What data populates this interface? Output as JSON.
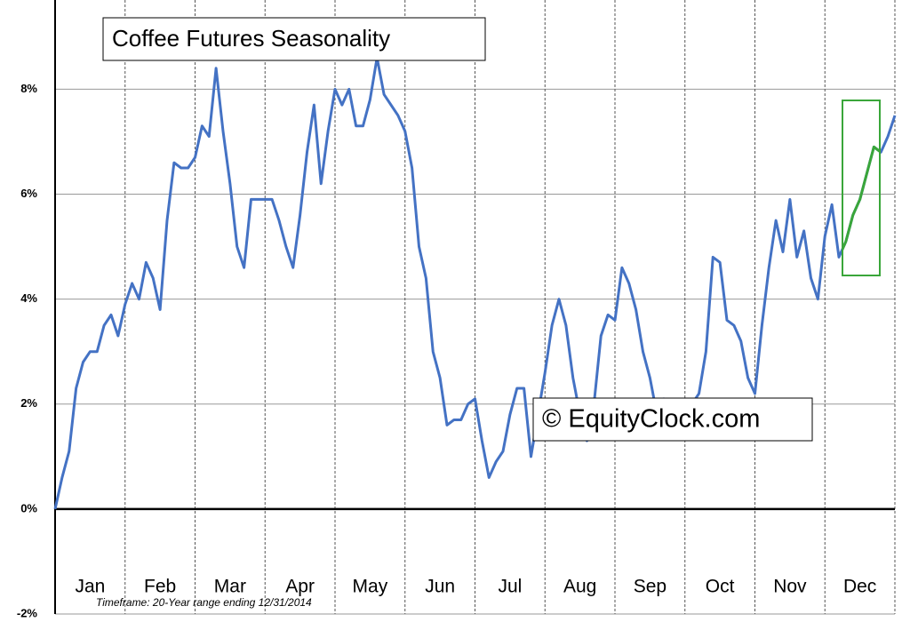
{
  "chart_data": {
    "type": "line",
    "title": "Coffee Futures Seasonality",
    "watermark": "© EquityClock.com",
    "footnote": "Timeframe: 20-Year range ending 12/31/2014",
    "x": [
      0,
      1,
      2,
      3,
      4,
      5,
      6,
      7,
      8,
      9,
      10,
      11,
      12,
      13,
      14,
      15,
      16,
      17,
      18,
      19,
      20,
      21,
      22,
      23,
      24,
      25,
      26,
      27,
      28,
      29,
      30,
      31,
      32,
      33,
      34,
      35,
      36,
      37,
      38,
      39,
      40,
      41,
      42,
      43,
      44,
      45,
      46,
      47,
      48,
      49,
      50,
      51,
      52,
      53,
      54,
      55,
      56,
      57,
      58,
      59,
      60,
      61,
      62,
      63,
      64,
      65,
      66,
      67,
      68,
      69,
      70,
      71,
      72,
      73,
      74,
      75,
      76,
      77,
      78,
      79,
      80,
      81,
      82,
      83,
      84,
      85,
      86,
      87,
      88,
      89,
      90,
      91,
      92,
      93,
      94,
      95,
      96,
      97,
      98,
      99,
      100,
      101,
      102,
      103,
      104,
      105,
      106,
      107,
      108,
      109,
      110,
      111,
      112,
      113,
      114,
      115,
      116,
      117,
      118,
      119,
      120
    ],
    "series": [
      {
        "name": "Coffee Futures",
        "color": "#4472c4",
        "values": [
          0,
          0.6,
          1.1,
          2.3,
          2.8,
          3.0,
          3.0,
          3.5,
          3.7,
          3.3,
          3.9,
          4.3,
          4.0,
          4.7,
          4.4,
          3.8,
          5.5,
          6.6,
          6.5,
          6.5,
          6.7,
          7.3,
          7.1,
          8.4,
          7.2,
          6.2,
          5.0,
          4.6,
          5.9,
          5.9,
          5.9,
          5.9,
          5.5,
          5.0,
          4.6,
          5.6,
          6.8,
          7.7,
          6.2,
          7.2,
          8.0,
          7.7,
          8.0,
          7.3,
          7.3,
          7.8,
          8.6,
          7.9,
          7.7,
          7.5,
          7.2,
          6.5,
          5.0,
          4.4,
          3.0,
          2.5,
          1.6,
          1.7,
          1.7,
          2.0,
          2.1,
          1.3,
          0.6,
          0.9,
          1.1,
          1.8,
          2.3,
          2.3,
          1.0,
          1.8,
          2.6,
          3.5,
          4.0,
          3.5,
          2.5,
          1.8,
          1.3,
          2.0,
          3.3,
          3.7,
          3.6,
          4.6,
          4.3,
          3.8,
          3.0,
          2.5,
          1.8,
          2.1,
          2.0,
          2.0,
          2.0,
          2.0,
          2.2,
          3.0,
          4.8,
          4.7,
          3.6,
          3.5,
          3.2,
          2.5,
          2.2,
          3.5,
          4.6,
          5.5,
          4.9,
          5.9,
          4.8,
          5.3,
          4.4,
          4.0,
          5.2,
          5.8,
          4.8,
          5.1,
          5.6,
          5.9,
          6.4,
          6.9,
          6.8,
          7.1,
          7.5
        ]
      }
    ],
    "xlim": [
      0,
      120
    ],
    "xticks": [
      {
        "value": 5,
        "label": "Jan"
      },
      {
        "value": 15,
        "label": "Feb"
      },
      {
        "value": 25,
        "label": "Mar"
      },
      {
        "value": 35,
        "label": "Apr"
      },
      {
        "value": 45,
        "label": "May"
      },
      {
        "value": 55,
        "label": "Jun"
      },
      {
        "value": 65,
        "label": "Jul"
      },
      {
        "value": 75,
        "label": "Aug"
      },
      {
        "value": 85,
        "label": "Sep"
      },
      {
        "value": 95,
        "label": "Oct"
      },
      {
        "value": 105,
        "label": "Nov"
      },
      {
        "value": 115,
        "label": "Dec"
      }
    ],
    "ylim": [
      -2,
      9.7
    ],
    "yticks": [
      {
        "value": -2,
        "label": "-2%"
      },
      {
        "value": 0,
        "label": "0%"
      },
      {
        "value": 2,
        "label": "2%"
      },
      {
        "value": 4,
        "label": "4%"
      },
      {
        "value": 6,
        "label": "6%"
      },
      {
        "value": 8,
        "label": "8%"
      }
    ],
    "grid": true
  }
}
